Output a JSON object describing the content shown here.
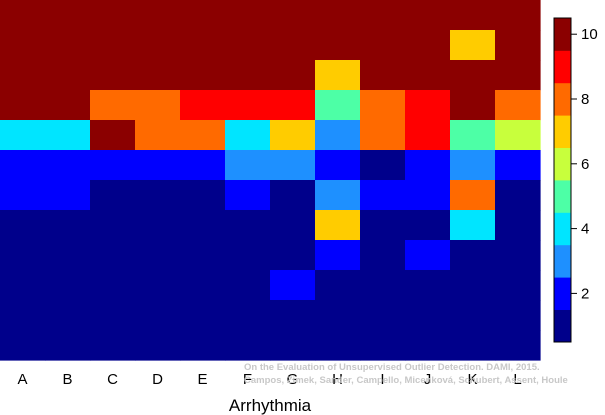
{
  "chart_data": {
    "type": "heatmap",
    "title": "",
    "xlabel": "Arrhythmia",
    "ylabel": "",
    "categories": [
      "A",
      "B",
      "C",
      "D",
      "E",
      "F",
      "G",
      "H",
      "I",
      "J",
      "K",
      "L"
    ],
    "row_order": "top-to-bottom",
    "rows": 12,
    "values": [
      [
        10,
        10,
        10,
        10,
        10,
        10,
        10,
        10,
        10,
        10,
        10,
        10
      ],
      [
        10,
        10,
        10,
        10,
        10,
        10,
        10,
        10,
        10,
        10,
        7,
        10
      ],
      [
        10,
        10,
        10,
        10,
        10,
        10,
        10,
        7,
        10,
        10,
        10,
        10
      ],
      [
        10,
        10,
        8,
        8,
        9,
        9,
        9,
        5,
        8,
        9,
        10,
        8
      ],
      [
        4,
        4,
        10,
        8,
        8,
        4,
        7,
        3,
        8,
        9,
        5,
        6
      ],
      [
        2,
        2,
        2,
        2,
        2,
        3,
        3,
        2,
        1,
        2,
        3,
        2
      ],
      [
        2,
        2,
        1,
        1,
        1,
        2,
        1,
        3,
        2,
        2,
        8,
        1
      ],
      [
        1,
        1,
        1,
        1,
        1,
        1,
        1,
        7,
        1,
        1,
        4,
        1
      ],
      [
        1,
        1,
        1,
        1,
        1,
        1,
        1,
        2,
        1,
        2,
        1,
        1
      ],
      [
        1,
        1,
        1,
        1,
        1,
        1,
        2,
        1,
        1,
        1,
        1,
        1
      ],
      [
        1,
        1,
        1,
        1,
        1,
        1,
        1,
        1,
        1,
        1,
        1,
        1
      ],
      [
        1,
        1,
        1,
        1,
        1,
        1,
        1,
        1,
        1,
        1,
        1,
        1
      ]
    ],
    "colorbar": {
      "min": 1,
      "max": 10,
      "ticks": [
        2,
        4,
        6,
        8,
        10
      ],
      "colors": [
        "#00008b",
        "#0000ff",
        "#1e90ff",
        "#00e5ff",
        "#4dffa6",
        "#c8ff3c",
        "#ffcc00",
        "#ff6a00",
        "#ff0000",
        "#8b0000"
      ]
    },
    "grid": false,
    "legend": "right"
  },
  "credit": {
    "line1": "On the Evaluation of Unsupervised Outlier Detection. DAMI, 2015.",
    "line2": "Campos, Zimek, Sander, Campello, Micenková, Schubert, Assent, Houle"
  }
}
